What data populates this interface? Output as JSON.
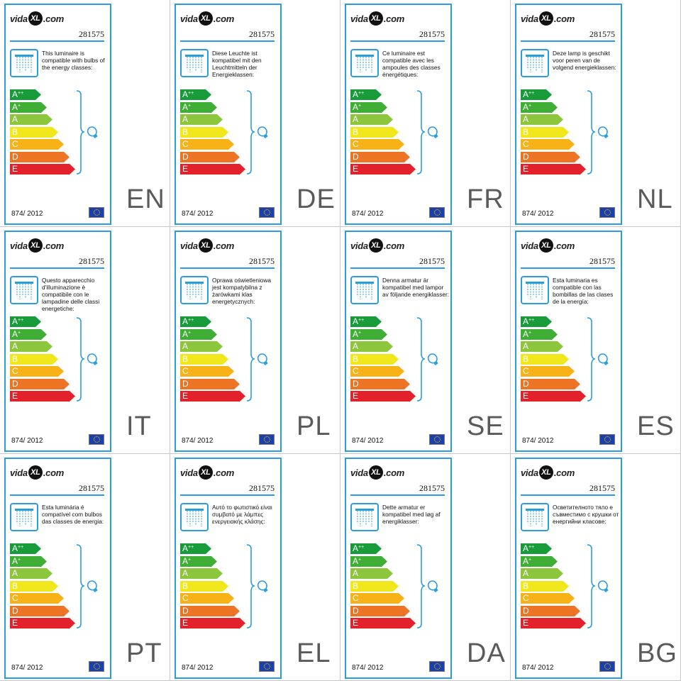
{
  "brand": {
    "logo_prefix": "vida",
    "logo_mark": "XL",
    "logo_suffix": ".com"
  },
  "sku": "281575",
  "regulation": "874/ 2012",
  "energy_classes": [
    {
      "letter": "A",
      "sup": "++",
      "color": "#1a9b3a"
    },
    {
      "letter": "A",
      "sup": "+",
      "color": "#3fae35"
    },
    {
      "letter": "A",
      "sup": "",
      "color": "#8cc63f"
    },
    {
      "letter": "B",
      "sup": "",
      "color": "#f0e81c"
    },
    {
      "letter": "C",
      "sup": "",
      "color": "#f7b218"
    },
    {
      "letter": "D",
      "sup": "",
      "color": "#ee7323"
    },
    {
      "letter": "E",
      "sup": "",
      "color": "#e3212b"
    }
  ],
  "colors": {
    "accent": "#2a9ed8",
    "flag": "#1c3fa8"
  },
  "icons": {
    "lamp": "chandelier-icon",
    "bulb": "bulb-icon",
    "flag": "eu-flag-icon"
  },
  "labels": [
    {
      "lang": "EN",
      "text": "This luminaire is compatible with bulbs of the energy classes:"
    },
    {
      "lang": "DE",
      "text": "Diese Leuchte ist kompatibel mit den Leuchtmitteln der Energieklassen:"
    },
    {
      "lang": "FR",
      "text": "Ce luminaire est compatible avec les ampoules des classes énergétiques:"
    },
    {
      "lang": "NL",
      "text": "Deze lamp is geschikt voor peren van de volgend energieklassen:"
    },
    {
      "lang": "IT",
      "text": "Questo apparecchio d'illuminazione è compatibile con le lampadine delle classi energetiche:"
    },
    {
      "lang": "PL",
      "text": "Oprawa oświetleniowa jest kompatybilna z żarówkami klas energetycznych:"
    },
    {
      "lang": "SE",
      "text": "Denna armatur är kompatibel med lampor av följande energiklasser:"
    },
    {
      "lang": "ES",
      "text": "Esta luminaria es compatible con las bombillas de las clases de la energía:"
    },
    {
      "lang": "PT",
      "text": "Esta luminária é compatível com bulbos das classes de energia:"
    },
    {
      "lang": "EL",
      "text": "Αυτό το φωτιστικό είναι συμβατό με λάμπες ενεργειακής κλάσης:"
    },
    {
      "lang": "DA",
      "text": "Dette armatur er kompatibel med løg af energiklasser:"
    },
    {
      "lang": "BG",
      "text": "Осветителното тяло е съвместимо с крушки от енергийни класове:"
    }
  ]
}
